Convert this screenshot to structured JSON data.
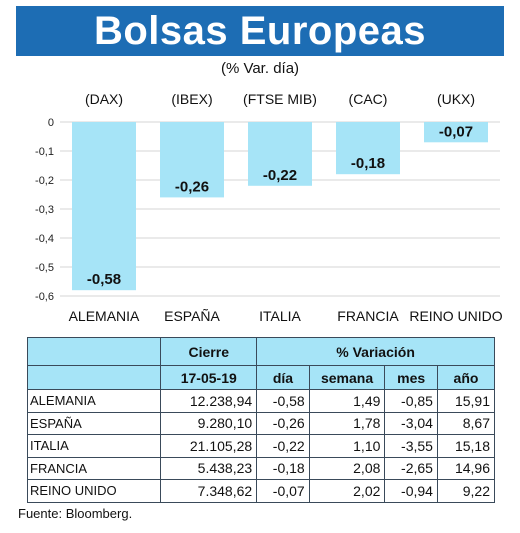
{
  "title": "Bolsas Europeas",
  "subtitle": "(% Var. día)",
  "chart_data": {
    "type": "bar",
    "categories": [
      "ALEMANIA",
      "ESPAÑA",
      "ITALIA",
      "FRANCIA",
      "REINO UNIDO"
    ],
    "indices": [
      "(DAX)",
      "(IBEX)",
      "(FTSE MIB)",
      "(CAC)",
      "(UKX)"
    ],
    "values": [
      -0.58,
      -0.26,
      -0.22,
      -0.18,
      -0.07
    ],
    "value_labels": [
      "-0,58",
      "-0,26",
      "-0,22",
      "-0,18",
      "-0,07"
    ],
    "ylim": [
      -0.6,
      0
    ],
    "yticks": [
      0,
      -0.1,
      -0.2,
      -0.3,
      -0.4,
      -0.5,
      -0.6
    ],
    "ytick_labels": [
      "0",
      "-0,1",
      "-0,2",
      "-0,3",
      "-0,4",
      "-0,5",
      "-0,6"
    ],
    "grid": true,
    "bar_color": "#a6e4f7",
    "grid_color": "#d6d6d6"
  },
  "table": {
    "header_cierre": "Cierre",
    "header_variacion": "% Variación",
    "date": "17-05-19",
    "col_dia": "día",
    "col_semana": "semana",
    "col_mes": "mes",
    "col_ano": "año",
    "rows": [
      {
        "country": "ALEMANIA",
        "cierre": "12.238,94",
        "dia": "-0,58",
        "semana": "1,49",
        "mes": "-0,85",
        "ano": "15,91"
      },
      {
        "country": "ESPAÑA",
        "cierre": "9.280,10",
        "dia": "-0,26",
        "semana": "1,78",
        "mes": "-3,04",
        "ano": "8,67"
      },
      {
        "country": "ITALIA",
        "cierre": "21.105,28",
        "dia": "-0,22",
        "semana": "1,10",
        "mes": "-3,55",
        "ano": "15,18"
      },
      {
        "country": "FRANCIA",
        "cierre": "5.438,23",
        "dia": "-0,18",
        "semana": "2,08",
        "mes": "-2,65",
        "ano": "14,96"
      },
      {
        "country": "REINO UNIDO",
        "cierre": "7.348,62",
        "dia": "-0,07",
        "semana": "2,02",
        "mes": "-0,94",
        "ano": "9,22"
      }
    ]
  },
  "source": "Fuente: Bloomberg."
}
